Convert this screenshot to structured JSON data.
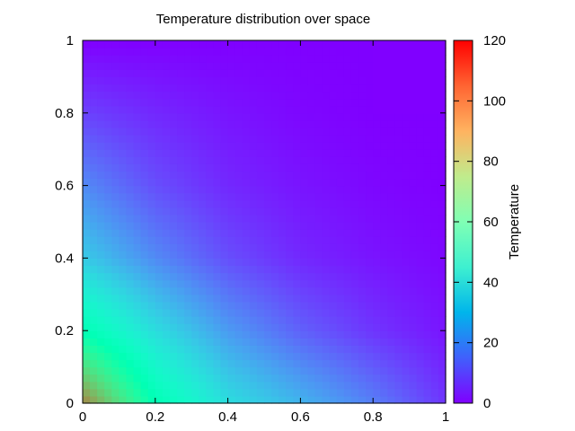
{
  "chart_data": {
    "type": "heatmap",
    "title": "Temperature distribution over space",
    "xlabel": "",
    "ylabel": "",
    "xlim": [
      0,
      1
    ],
    "ylim": [
      0,
      1
    ],
    "x_ticks": [
      "0",
      "0.2",
      "0.4",
      "0.6",
      "0.8",
      "1"
    ],
    "y_ticks": [
      "0",
      "0.2",
      "0.4",
      "0.6",
      "0.8",
      "1"
    ],
    "colorbar": {
      "label": "Temperature",
      "range": [
        0,
        120
      ],
      "ticks": [
        "0",
        "20",
        "40",
        "60",
        "80",
        "100",
        "120"
      ],
      "colormap": "rainbow"
    },
    "grid": false,
    "grid_samples": {
      "x": [
        0,
        0.2,
        0.4,
        0.6,
        0.8,
        1
      ],
      "y": [
        0,
        0.2,
        0.4,
        0.6,
        0.8,
        1
      ],
      "z": [
        [
          100,
          60,
          40,
          30,
          20,
          8
        ],
        [
          60,
          40,
          25,
          15,
          8,
          3
        ],
        [
          35,
          22,
          12,
          6,
          3,
          1
        ],
        [
          22,
          12,
          6,
          3,
          1,
          0
        ],
        [
          10,
          6,
          3,
          1,
          0,
          0
        ],
        [
          0,
          0,
          0,
          0,
          0,
          0
        ]
      ]
    }
  }
}
